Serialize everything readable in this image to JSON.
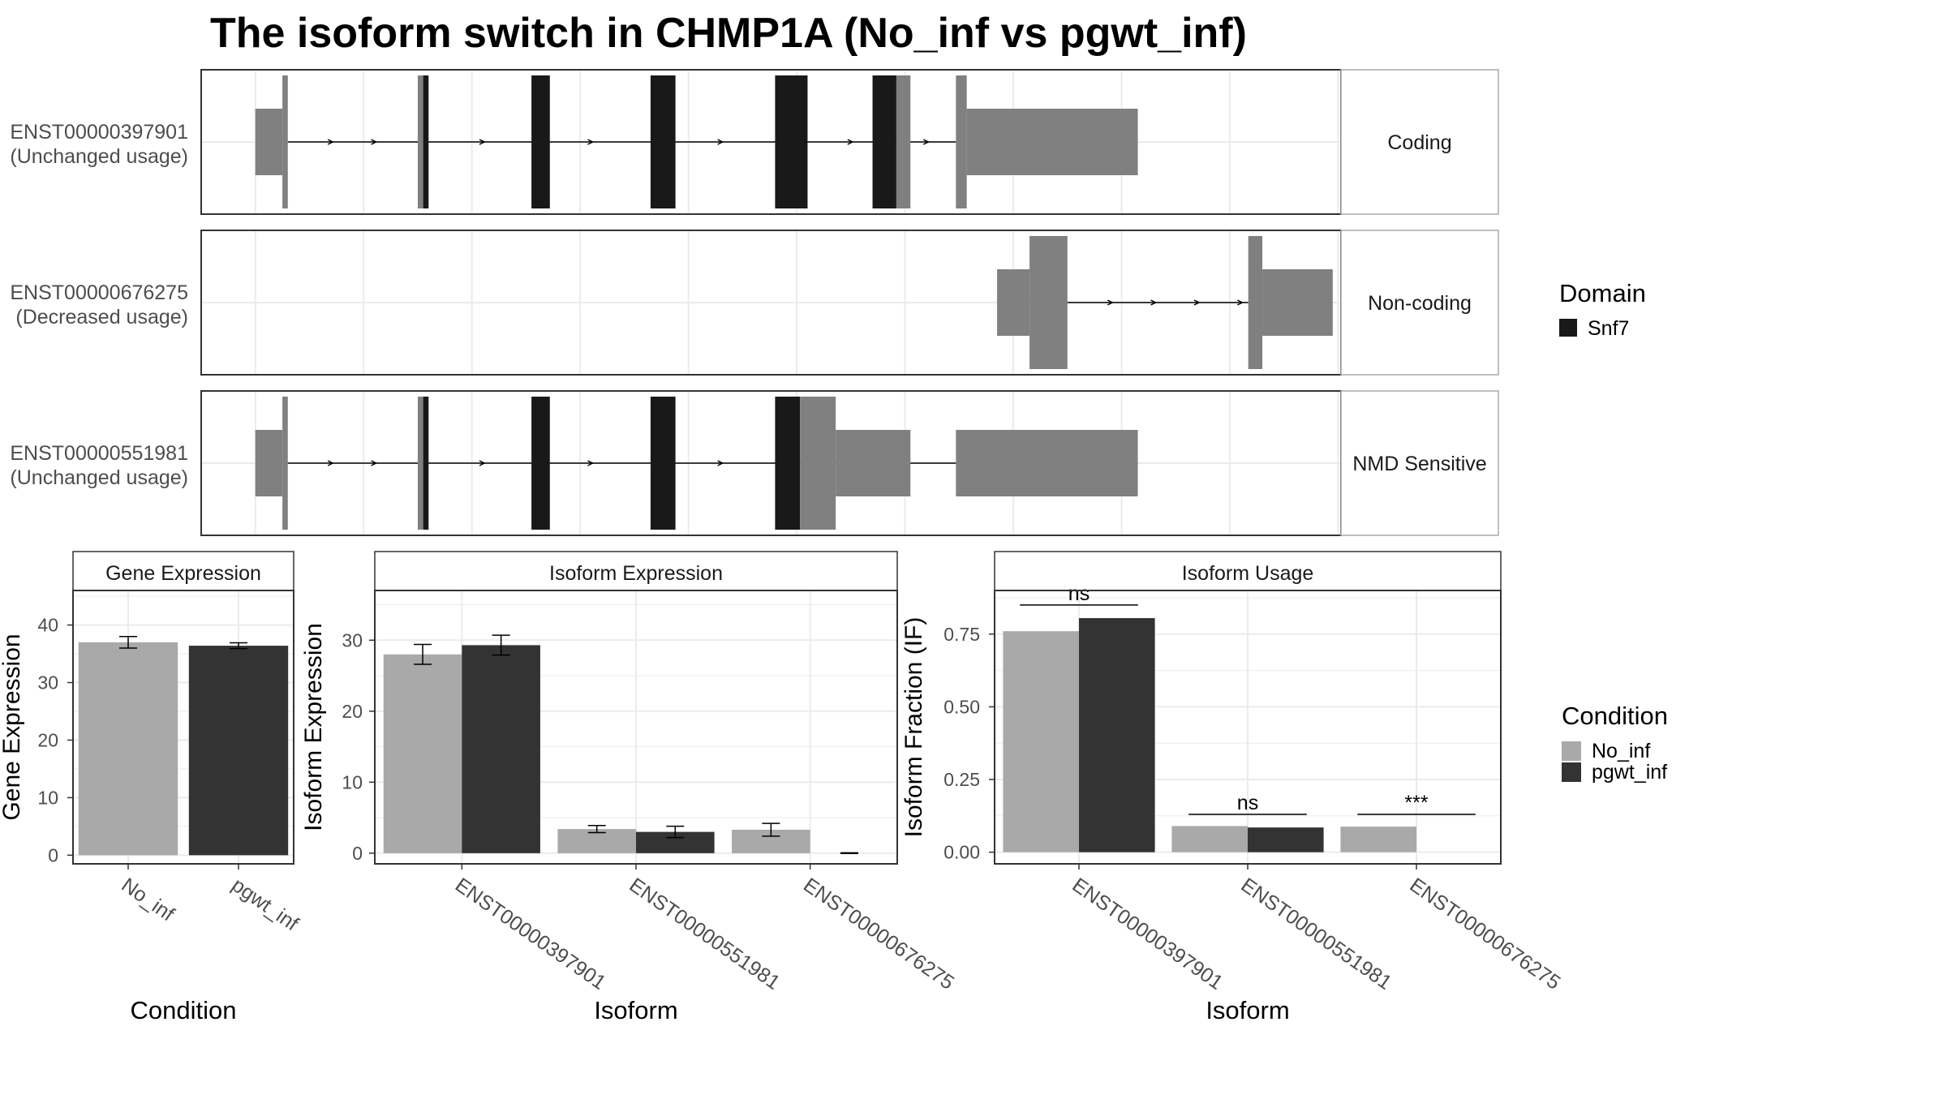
{
  "title": "The isoform switch in CHMP1A (No_inf vs pgwt_inf)",
  "colors": {
    "domain": "#191919",
    "utr": "#808080",
    "no_inf": "#A9A9A9",
    "pgwt_inf": "#333333",
    "grid": "#EBEBEB",
    "strip_bg": "#FFFFFF",
    "border": "#333333"
  },
  "domain_legend": {
    "title": "Domain",
    "items": [
      "Snf7"
    ]
  },
  "condition_legend": {
    "title": "Condition",
    "items": [
      "No_inf",
      "pgwt_inf"
    ]
  },
  "transcripts": [
    {
      "id": "ENST00000397901",
      "usage": "(Unchanged usage)",
      "class": "Coding",
      "exons": [
        [
          0.05,
          0.075,
          "utr_thin"
        ],
        [
          0.075,
          0.08,
          "utr_thick"
        ],
        [
          0.2,
          0.205,
          "utr_thick"
        ],
        [
          0.205,
          0.21,
          "domain"
        ],
        [
          0.305,
          0.322,
          "domain"
        ],
        [
          0.415,
          0.438,
          "domain"
        ],
        [
          0.53,
          0.56,
          "domain"
        ],
        [
          0.62,
          0.642,
          "domain"
        ],
        [
          0.642,
          0.655,
          "utr_thick"
        ],
        [
          0.697,
          0.707,
          "utr_thick"
        ],
        [
          0.707,
          0.865,
          "utr_thin"
        ]
      ],
      "arrows": [
        0.12,
        0.16,
        0.26,
        0.36,
        0.48,
        0.6,
        0.67
      ],
      "intron": [
        0.08,
        0.697
      ]
    },
    {
      "id": "ENST00000676275",
      "usage": "(Decreased usage)",
      "class": "Non-coding",
      "exons": [
        [
          0.735,
          0.765,
          "utr_thin"
        ],
        [
          0.765,
          0.8,
          "utr_thick"
        ],
        [
          0.967,
          0.98,
          "utr_thick"
        ],
        [
          0.98,
          1.045,
          "utr_thin"
        ]
      ],
      "arrows": [
        0.84,
        0.88,
        0.92,
        0.96
      ],
      "intron": [
        0.8,
        0.967
      ]
    },
    {
      "id": "ENST00000551981",
      "usage": "(Unchanged usage)",
      "class": "NMD Sensitive",
      "exons": [
        [
          0.05,
          0.075,
          "utr_thin"
        ],
        [
          0.075,
          0.08,
          "utr_thick"
        ],
        [
          0.2,
          0.205,
          "utr_thick"
        ],
        [
          0.205,
          0.21,
          "domain"
        ],
        [
          0.305,
          0.322,
          "domain"
        ],
        [
          0.415,
          0.438,
          "domain"
        ],
        [
          0.53,
          0.553,
          "domain"
        ],
        [
          0.553,
          0.586,
          "utr_thick"
        ],
        [
          0.586,
          0.655,
          "utr_thin"
        ],
        [
          0.697,
          0.865,
          "utr_thin"
        ]
      ],
      "arrows": [
        0.12,
        0.16,
        0.26,
        0.36,
        0.48,
        0.6
      ],
      "intron": [
        0.08,
        0.697
      ]
    }
  ],
  "chart_data": [
    {
      "type": "bar",
      "strip": "Gene Expression",
      "xlabel": "Condition",
      "ylabel": "Gene Expression",
      "ylim": [
        -1.5,
        46
      ],
      "yticks": [
        0,
        10,
        20,
        30,
        40
      ],
      "categories": [
        "No_inf",
        "pgwt_inf"
      ],
      "series": [
        {
          "name": "No_inf",
          "values": [
            37.0,
            null
          ],
          "err": [
            1.0,
            null
          ]
        },
        {
          "name": "pgwt_inf",
          "values": [
            null,
            36.4
          ],
          "err": [
            null,
            0.5
          ]
        }
      ]
    },
    {
      "type": "bar",
      "strip": "Isoform Expression",
      "xlabel": "Isoform",
      "ylabel": "Isoform Expression",
      "ylim": [
        -1.5,
        37
      ],
      "yticks": [
        0,
        10,
        20,
        30
      ],
      "categories": [
        "ENST00000397901",
        "ENST00000551981",
        "ENST00000676275"
      ],
      "series": [
        {
          "name": "No_inf",
          "values": [
            28.0,
            3.4,
            3.3
          ],
          "err": [
            1.4,
            0.5,
            0.9
          ]
        },
        {
          "name": "pgwt_inf",
          "values": [
            29.3,
            3.0,
            0
          ],
          "err": [
            1.4,
            0.8,
            0.05
          ]
        }
      ]
    },
    {
      "type": "bar",
      "strip": "Isoform Usage",
      "xlabel": "Isoform",
      "ylabel": "Isoform Fraction (IF)",
      "ylim": [
        -0.04,
        0.9
      ],
      "yticks": [
        0.0,
        0.25,
        0.5,
        0.75
      ],
      "ytick_labels": [
        "0.00",
        "0.25",
        "0.50",
        "0.75"
      ],
      "categories": [
        "ENST00000397901",
        "ENST00000551981",
        "ENST00000676275"
      ],
      "series": [
        {
          "name": "No_inf",
          "values": [
            0.76,
            0.09,
            0.088
          ]
        },
        {
          "name": "pgwt_inf",
          "values": [
            0.805,
            0.085,
            0
          ]
        }
      ],
      "annotations": [
        {
          "category": 0,
          "text": "ns",
          "y": 0.85
        },
        {
          "category": 1,
          "text": "ns",
          "y": 0.13
        },
        {
          "category": 2,
          "text": "***",
          "y": 0.13
        }
      ]
    }
  ]
}
